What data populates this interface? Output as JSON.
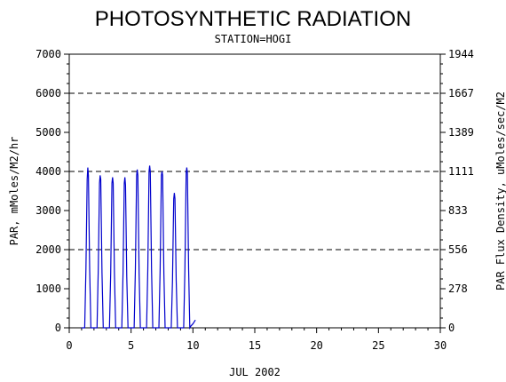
{
  "chart_data": {
    "type": "line",
    "title": "PHOTOSYNTHETIC RADIATION",
    "subtitle": "STATION=HOGI",
    "xlabel": "JUL 2002",
    "ylabel": "PAR, mMoles/M2/hr",
    "y2label": "PAR Flux Density, uMoles/sec/M2",
    "xlim": [
      0,
      30
    ],
    "ylim": [
      0,
      7000
    ],
    "x_ticks": [
      "0",
      "5",
      "10",
      "15",
      "20",
      "25",
      "30"
    ],
    "y_ticks": [
      "0",
      "1000",
      "2000",
      "3000",
      "4000",
      "5000",
      "6000",
      "7000"
    ],
    "y2_ticks": [
      "0",
      "278",
      "556",
      "833",
      "1111",
      "1389",
      "1667",
      "1944"
    ],
    "grid": "dashed horizontal at 2000, 4000, 6000",
    "series_color": "#0000cc",
    "daily_peaks": [
      {
        "day": 1.5,
        "peak": 4100
      },
      {
        "day": 2.5,
        "peak": 3900
      },
      {
        "day": 3.5,
        "peak": 3850
      },
      {
        "day": 4.5,
        "peak": 3850
      },
      {
        "day": 5.5,
        "peak": 4050
      },
      {
        "day": 6.5,
        "peak": 4150
      },
      {
        "day": 7.5,
        "peak": 4000
      },
      {
        "day": 8.5,
        "peak": 3450
      },
      {
        "day": 9.5,
        "peak": 4100
      }
    ],
    "series": [
      {
        "x": [
          1.0,
          1.25,
          1.35,
          1.45,
          1.5,
          1.55,
          1.65,
          1.75,
          2.25,
          2.35,
          2.45,
          2.5,
          2.55,
          2.65,
          2.75,
          3.25,
          3.35,
          3.45,
          3.5,
          3.55,
          3.65,
          3.75,
          4.25,
          4.35,
          4.45,
          4.5,
          4.55,
          4.65,
          4.75,
          5.25,
          5.35,
          5.45,
          5.5,
          5.55,
          5.65,
          5.75,
          6.25,
          6.35,
          6.45,
          6.5,
          6.55,
          6.65,
          6.75,
          7.25,
          7.35,
          7.45,
          7.5,
          7.55,
          7.65,
          7.75,
          8.25,
          8.35,
          8.45,
          8.5,
          8.55,
          8.65,
          8.75,
          9.25,
          9.35,
          9.45,
          9.5,
          9.55,
          9.65,
          9.75,
          9.85,
          10.0,
          10.1,
          10.2
        ],
        "y": [
          0,
          0,
          1500,
          3800,
          4100,
          3900,
          1500,
          0,
          0,
          1500,
          3700,
          3900,
          3800,
          1400,
          0,
          0,
          1400,
          3700,
          3850,
          3700,
          1400,
          0,
          0,
          1400,
          3700,
          3850,
          3650,
          1300,
          0,
          0,
          1500,
          3900,
          4050,
          3900,
          1400,
          0,
          0,
          1500,
          4000,
          4150,
          4000,
          1500,
          0,
          0,
          1500,
          3900,
          4000,
          3900,
          1400,
          0,
          0,
          1200,
          3300,
          3450,
          3300,
          1200,
          0,
          0,
          1500,
          3950,
          4100,
          3950,
          1500,
          0,
          50,
          100,
          150,
          200
        ]
      }
    ]
  }
}
